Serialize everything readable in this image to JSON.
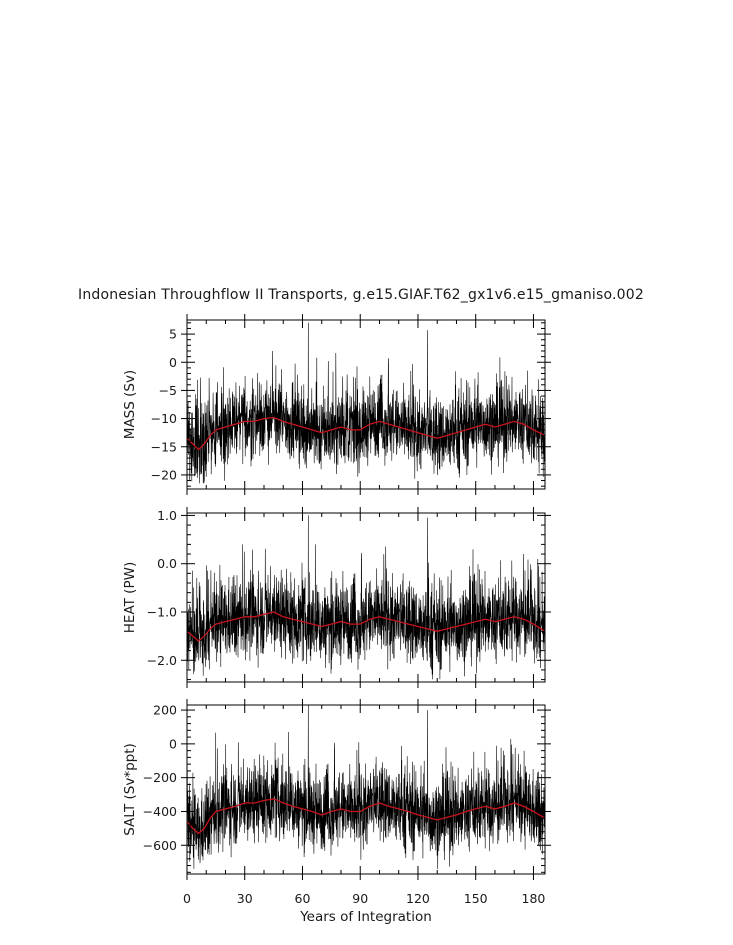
{
  "figure": {
    "title": "Indonesian Throughflow II Transports, g.e15.GIAF.T62_gx1v6.e15_gmaniso.002",
    "xlabel": "Years of Integration"
  },
  "colors": {
    "raw_series": "#000000",
    "smoothed_series": "#c8141e"
  },
  "chart_data": [
    {
      "type": "line",
      "title": "Indonesian Throughflow II Transports, g.e15.GIAF.T62_gx1v6.e15_gmaniso.002",
      "ylabel": "MASS (Sv)",
      "xlabel": "Years of Integration",
      "xlim": [
        0,
        186
      ],
      "ylim": [
        -22.5,
        7.5
      ],
      "xticks": [
        0,
        30,
        60,
        90,
        120,
        150,
        180
      ],
      "yticks": [
        5,
        0,
        -5,
        -10,
        -15,
        -20
      ],
      "ytick_labels": [
        "5",
        "0",
        "−5",
        "−10",
        "−15",
        "−20"
      ],
      "grid": false,
      "series": [
        {
          "role": "raw monthly",
          "color": "#000000",
          "baseline": -13.0,
          "spread": 3.2,
          "min": -21.5,
          "max": 2.0,
          "spikes": [
            [
              63,
              7.0
            ],
            [
              125,
              5.7
            ]
          ]
        },
        {
          "role": "smoothed",
          "color": "#c8141e",
          "x": [
            0,
            3,
            6,
            9,
            12,
            15,
            20,
            25,
            30,
            35,
            40,
            45,
            50,
            55,
            60,
            65,
            70,
            75,
            80,
            85,
            90,
            95,
            100,
            105,
            110,
            115,
            120,
            125,
            130,
            135,
            140,
            145,
            150,
            155,
            160,
            165,
            170,
            175,
            180,
            186
          ],
          "y": [
            -13.5,
            -14.5,
            -15.5,
            -14.5,
            -13.0,
            -12.0,
            -11.5,
            -11.0,
            -10.5,
            -10.5,
            -10.0,
            -9.8,
            -10.5,
            -11.0,
            -11.5,
            -12.0,
            -12.5,
            -12.0,
            -11.5,
            -12.0,
            -12.0,
            -11.0,
            -10.5,
            -11.0,
            -11.5,
            -12.0,
            -12.5,
            -13.0,
            -13.5,
            -13.0,
            -12.5,
            -12.0,
            -11.5,
            -11.0,
            -11.5,
            -11.0,
            -10.5,
            -11.0,
            -12.0,
            -13.0
          ]
        }
      ]
    },
    {
      "type": "line",
      "ylabel": "HEAT (PW)",
      "xlabel": "Years of Integration",
      "xlim": [
        0,
        186
      ],
      "ylim": [
        -2.45,
        1.05
      ],
      "xticks": [
        0,
        30,
        60,
        90,
        120,
        150,
        180
      ],
      "yticks": [
        1.0,
        0.0,
        -1.0,
        -2.0
      ],
      "ytick_labels": [
        "1.0",
        "0.0",
        "−1.0",
        "−2.0"
      ],
      "grid": false,
      "series": [
        {
          "role": "raw monthly",
          "color": "#000000",
          "baseline": -1.3,
          "spread": 0.4,
          "min": -2.4,
          "max": 0.4,
          "spikes": [
            [
              63,
              1.0
            ],
            [
              125,
              0.95
            ]
          ]
        },
        {
          "role": "smoothed",
          "color": "#c8141e",
          "x": [
            0,
            3,
            6,
            9,
            12,
            15,
            20,
            25,
            30,
            35,
            40,
            45,
            50,
            55,
            60,
            65,
            70,
            75,
            80,
            85,
            90,
            95,
            100,
            105,
            110,
            115,
            120,
            125,
            130,
            135,
            140,
            145,
            150,
            155,
            160,
            165,
            170,
            175,
            180,
            186
          ],
          "y": [
            -1.4,
            -1.5,
            -1.6,
            -1.5,
            -1.35,
            -1.25,
            -1.2,
            -1.15,
            -1.1,
            -1.1,
            -1.05,
            -1.0,
            -1.1,
            -1.15,
            -1.2,
            -1.25,
            -1.3,
            -1.25,
            -1.2,
            -1.25,
            -1.25,
            -1.15,
            -1.1,
            -1.15,
            -1.2,
            -1.25,
            -1.3,
            -1.35,
            -1.4,
            -1.35,
            -1.3,
            -1.25,
            -1.2,
            -1.15,
            -1.2,
            -1.15,
            -1.1,
            -1.15,
            -1.25,
            -1.4
          ]
        }
      ]
    },
    {
      "type": "line",
      "ylabel": "SALT (Sv*ppt)",
      "xlabel": "Years of Integration",
      "xlim": [
        0,
        186
      ],
      "ylim": [
        -770,
        230
      ],
      "xticks": [
        0,
        30,
        60,
        90,
        120,
        150,
        180
      ],
      "xtick_labels": [
        "0",
        "30",
        "60",
        "90",
        "120",
        "150",
        "180"
      ],
      "yticks": [
        200,
        0,
        -200,
        -400,
        -600
      ],
      "ytick_labels": [
        "200",
        "0",
        "−200",
        "−400",
        "−600"
      ],
      "grid": false,
      "series": [
        {
          "role": "raw monthly",
          "color": "#000000",
          "baseline": -430,
          "spread": 110,
          "min": -740,
          "max": 70,
          "spikes": [
            [
              63,
              230
            ],
            [
              125,
              200
            ]
          ]
        },
        {
          "role": "smoothed",
          "color": "#c8141e",
          "x": [
            0,
            3,
            6,
            9,
            12,
            15,
            20,
            25,
            30,
            35,
            40,
            45,
            50,
            55,
            60,
            65,
            70,
            75,
            80,
            85,
            90,
            95,
            100,
            105,
            110,
            115,
            120,
            125,
            130,
            135,
            140,
            145,
            150,
            155,
            160,
            165,
            170,
            175,
            180,
            186
          ],
          "y": [
            -460,
            -500,
            -530,
            -500,
            -440,
            -400,
            -385,
            -370,
            -350,
            -350,
            -335,
            -325,
            -350,
            -370,
            -385,
            -400,
            -420,
            -400,
            -385,
            -400,
            -400,
            -370,
            -350,
            -370,
            -385,
            -400,
            -420,
            -435,
            -450,
            -435,
            -420,
            -400,
            -385,
            -370,
            -385,
            -370,
            -350,
            -370,
            -400,
            -440
          ]
        }
      ]
    }
  ]
}
